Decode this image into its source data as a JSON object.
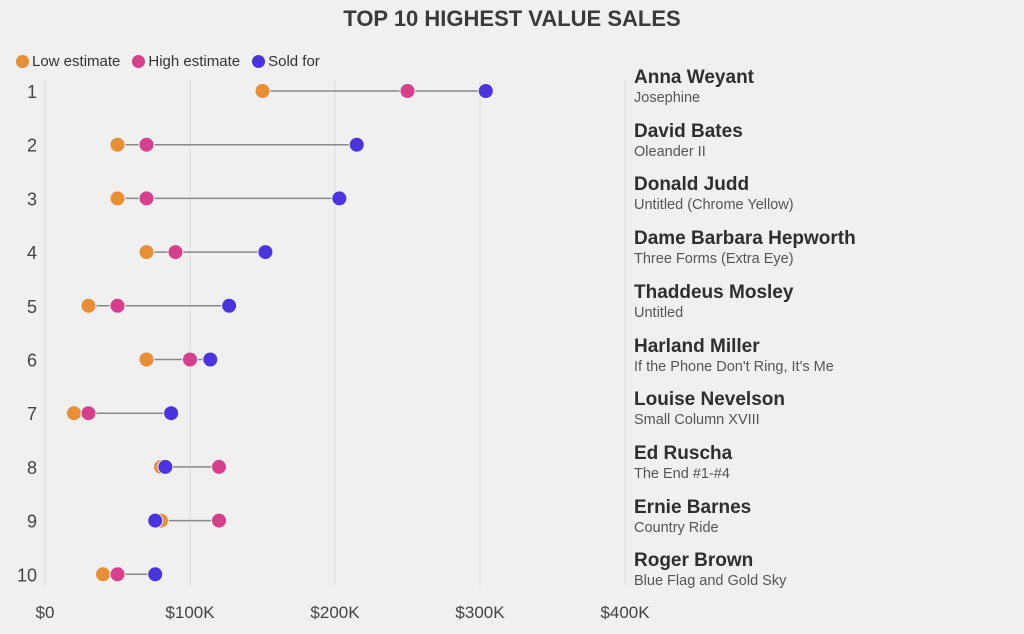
{
  "chart_data": {
    "type": "dot",
    "title": "TOP 10 HIGHEST VALUE SALES",
    "legend": [
      {
        "name": "Low estimate",
        "color": "#E88E34"
      },
      {
        "name": "High estimate",
        "color": "#D63F8C"
      },
      {
        "name": "Sold for",
        "color": "#4C33E0"
      }
    ],
    "legend_position": "top-left",
    "xlim": [
      0,
      400000
    ],
    "x_ticks": [
      {
        "value": 0,
        "label": "$0"
      },
      {
        "value": 100000,
        "label": "$100K"
      },
      {
        "value": 200000,
        "label": "$200K"
      },
      {
        "value": 300000,
        "label": "$300K"
      },
      {
        "value": 400000,
        "label": "$400K"
      }
    ],
    "rows": [
      {
        "rank": "1",
        "artist": "Anna Weyant",
        "work": "Josephine",
        "low": 150000,
        "high": 250000,
        "sold": 304000
      },
      {
        "rank": "2",
        "artist": "David Bates",
        "work": "Oleander II",
        "low": 50000,
        "high": 70000,
        "sold": 215000
      },
      {
        "rank": "3",
        "artist": "Donald Judd",
        "work": "Untitled (Chrome Yellow)",
        "low": 50000,
        "high": 70000,
        "sold": 203000
      },
      {
        "rank": "4",
        "artist": "Dame Barbara Hepworth",
        "work": "Three Forms (Extra Eye)",
        "low": 70000,
        "high": 90000,
        "sold": 152000
      },
      {
        "rank": "5",
        "artist": "Thaddeus Mosley",
        "work": "Untitled",
        "low": 30000,
        "high": 50000,
        "sold": 127000
      },
      {
        "rank": "6",
        "artist": "Harland Miller",
        "work": "If the Phone Don't Ring, It's Me",
        "low": 70000,
        "high": 100000,
        "sold": 114000
      },
      {
        "rank": "7",
        "artist": "Louise Nevelson",
        "work": "Small Column XVIII",
        "low": 20000,
        "high": 30000,
        "sold": 87000
      },
      {
        "rank": "8",
        "artist": "Ed Ruscha",
        "work": "The End #1-#4",
        "low": 80000,
        "high": 120000,
        "sold": 83000
      },
      {
        "rank": "9",
        "artist": "Ernie Barnes",
        "work": "Country Ride",
        "low": 80000,
        "high": 120000,
        "sold": 76000
      },
      {
        "rank": "10",
        "artist": "Roger Brown",
        "work": "Blue Flag and Gold Sky",
        "low": 40000,
        "high": 50000,
        "sold": 76000
      }
    ]
  }
}
